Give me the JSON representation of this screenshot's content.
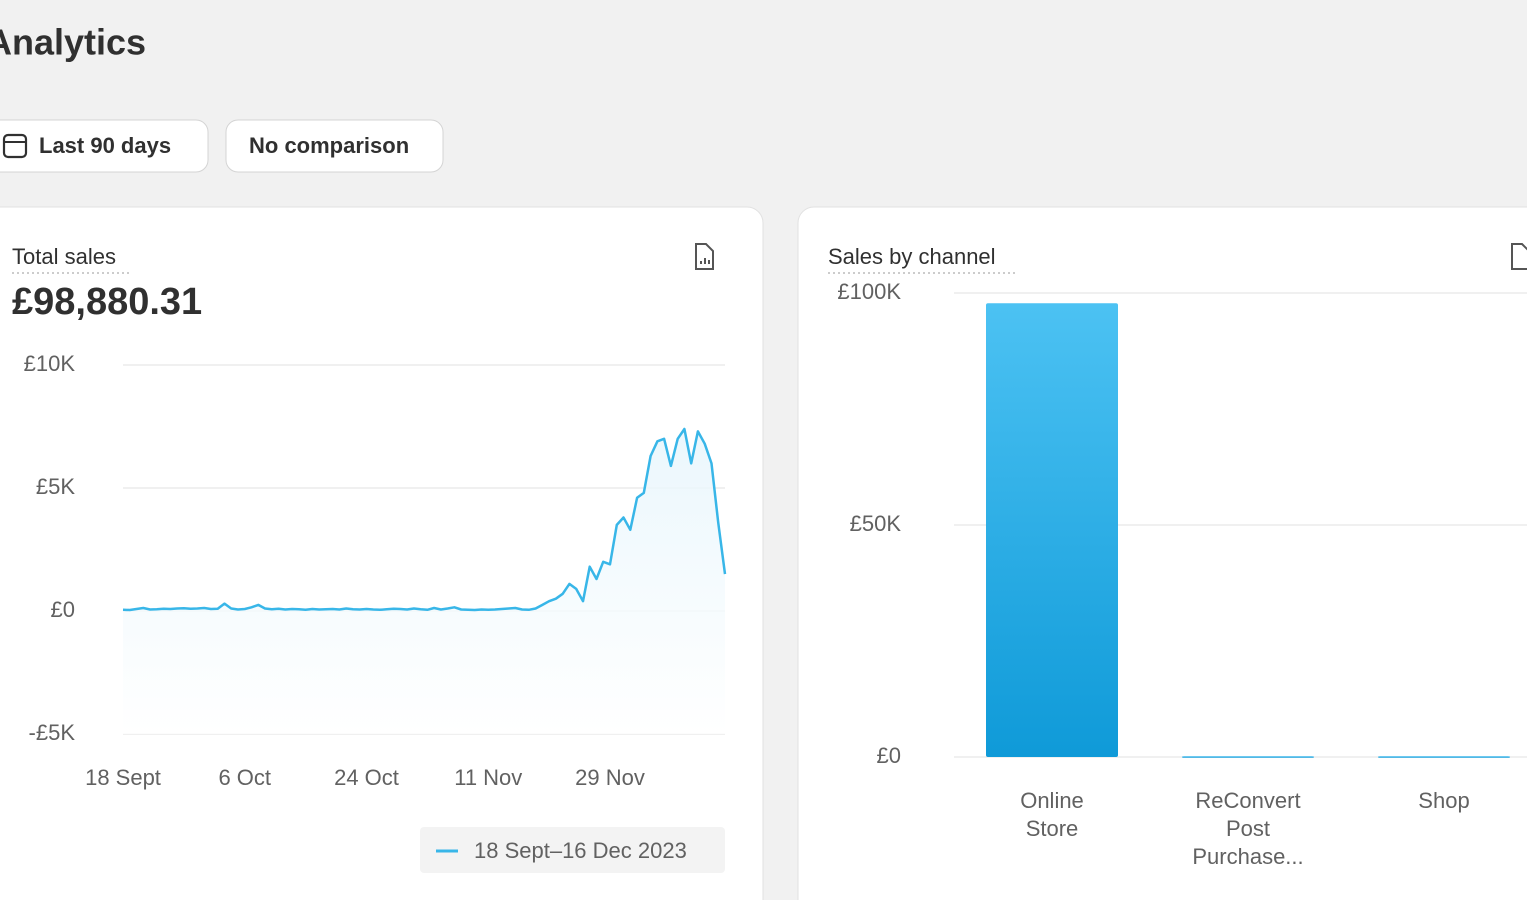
{
  "header": {
    "title": "Analytics"
  },
  "filters": [
    "Last 90 days",
    "No comparison"
  ],
  "chart_data": [
    {
      "type": "line",
      "title": "Total sales",
      "total": "£98,880.31",
      "categories": [
        "18 Sept",
        null,
        null,
        null,
        null,
        null,
        null,
        null,
        null,
        null,
        null,
        null,
        null,
        null,
        null,
        null,
        null,
        null,
        "6 Oct",
        null,
        null,
        null,
        null,
        null,
        null,
        null,
        null,
        null,
        null,
        null,
        null,
        null,
        null,
        null,
        null,
        null,
        "24 Oct",
        null,
        null,
        null,
        null,
        null,
        null,
        null,
        null,
        null,
        null,
        null,
        null,
        null,
        null,
        null,
        null,
        null,
        "11 Nov",
        null,
        null,
        null,
        null,
        null,
        null,
        null,
        null,
        null,
        null,
        null,
        null,
        null,
        null,
        null,
        null,
        null,
        "29 Nov",
        null,
        null,
        null,
        null,
        null,
        null,
        null,
        null,
        null,
        null,
        null,
        null,
        null,
        null,
        null,
        null,
        null
      ],
      "series": [
        {
          "name": "18 Sept–16 Dec 2023",
          "color": "#38b6e8",
          "values": [
            50,
            40,
            80,
            120,
            60,
            70,
            90,
            80,
            100,
            110,
            90,
            100,
            120,
            80,
            90,
            300,
            100,
            60,
            80,
            150,
            250,
            100,
            70,
            90,
            60,
            80,
            70,
            50,
            80,
            60,
            70,
            80,
            60,
            100,
            70,
            60,
            80,
            60,
            50,
            70,
            90,
            80,
            60,
            100,
            70,
            50,
            120,
            60,
            100,
            150,
            60,
            50,
            40,
            60,
            50,
            60,
            80,
            100,
            120,
            60,
            50,
            100,
            250,
            400,
            500,
            700,
            1100,
            900,
            400,
            1800,
            1300,
            2000,
            1900,
            3500,
            3800,
            3300,
            4600,
            4800,
            6300,
            6900,
            7000,
            5900,
            7000,
            7400,
            6000,
            7300,
            6800,
            6000,
            3600,
            1500
          ]
        }
      ],
      "ylim": [
        -5000,
        10000
      ],
      "yticks": [
        {
          "value": -5000,
          "label": "-£5K"
        },
        {
          "value": 0,
          "label": "£0"
        },
        {
          "value": 5000,
          "label": "£5K"
        },
        {
          "value": 10000,
          "label": "£10K"
        }
      ],
      "grid": true
    },
    {
      "type": "bar",
      "title": "Sales by channel",
      "categories": [
        "Online Store",
        "ReConvert Post Purchase...",
        "Shop"
      ],
      "values": [
        97800,
        150,
        150
      ],
      "color": "#1ea6e2",
      "ylim": [
        0,
        100000
      ],
      "yticks": [
        {
          "value": 0,
          "label": "£0"
        },
        {
          "value": 50000,
          "label": "£50K"
        },
        {
          "value": 100000,
          "label": "£100K"
        }
      ],
      "grid": true
    }
  ]
}
